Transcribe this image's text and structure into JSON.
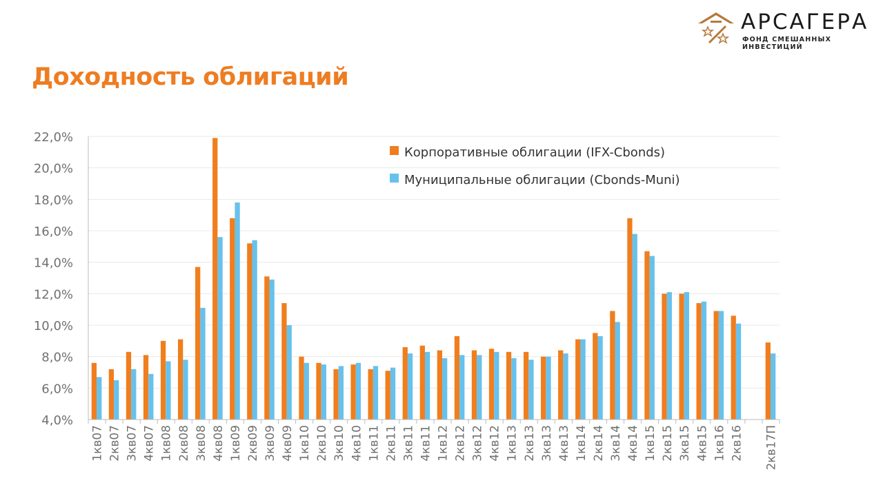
{
  "header": {
    "title": "Доходность облигаций",
    "logo_name": "АРСАГЕРА",
    "logo_subtitle": "ФОНД СМЕШАННЫХ ИНВЕСТИЦИЙ"
  },
  "colors": {
    "title": "#EE7D22",
    "corporate": "#F07E1E",
    "municipal": "#67C1EC"
  },
  "chart_data": {
    "type": "bar",
    "title": "Доходность облигаций",
    "xlabel": "",
    "ylabel": "",
    "ylim": [
      4,
      22
    ],
    "yticks": [
      "4,0%",
      "6,0%",
      "8,0%",
      "10,0%",
      "12,0%",
      "14,0%",
      "16,0%",
      "18,0%",
      "20,0%",
      "22,0%"
    ],
    "grid": true,
    "legend_position": "top-right",
    "categories": [
      "1кв07",
      "2кв07",
      "3кв07",
      "4кв07",
      "1кв08",
      "2кв08",
      "3кв08",
      "4кв08",
      "1кв09",
      "2кв09",
      "3кв09",
      "4кв09",
      "1кв10",
      "2кв10",
      "3кв10",
      "4кв10",
      "1кв11",
      "2кв11",
      "3кв11",
      "4кв11",
      "1кв12",
      "2кв12",
      "3кв12",
      "4кв12",
      "1кв13",
      "2кв13",
      "3кв13",
      "4кв13",
      "1кв14",
      "2кв14",
      "3кв14",
      "4кв14",
      "1кв15",
      "2кв15",
      "3кв15",
      "4кв15",
      "1кв16",
      "2кв16",
      "",
      "2кв17П"
    ],
    "series": [
      {
        "name": "Корпоративные облигации (IFX-Cbonds)",
        "color": "#F07E1E",
        "values": [
          7.6,
          7.2,
          8.3,
          8.1,
          9.0,
          9.1,
          13.7,
          21.9,
          16.8,
          15.2,
          13.1,
          11.4,
          8.0,
          7.6,
          7.2,
          7.5,
          7.2,
          7.1,
          8.6,
          8.7,
          8.4,
          9.3,
          8.4,
          8.5,
          8.3,
          8.3,
          8.0,
          8.4,
          9.1,
          9.5,
          10.9,
          16.8,
          14.7,
          12.0,
          12.0,
          11.4,
          10.9,
          10.6,
          null,
          8.9
        ]
      },
      {
        "name": "Муниципальные облигации (Cbonds-Muni)",
        "color": "#67C1EC",
        "values": [
          6.7,
          6.5,
          7.2,
          6.9,
          7.7,
          7.8,
          11.1,
          15.6,
          17.8,
          15.4,
          12.9,
          10.0,
          7.6,
          7.5,
          7.4,
          7.6,
          7.4,
          7.3,
          8.2,
          8.3,
          7.9,
          8.1,
          8.1,
          8.3,
          7.9,
          7.8,
          8.0,
          8.2,
          9.1,
          9.3,
          10.2,
          15.8,
          14.4,
          12.1,
          12.1,
          11.5,
          10.9,
          10.1,
          null,
          8.2
        ]
      }
    ]
  }
}
